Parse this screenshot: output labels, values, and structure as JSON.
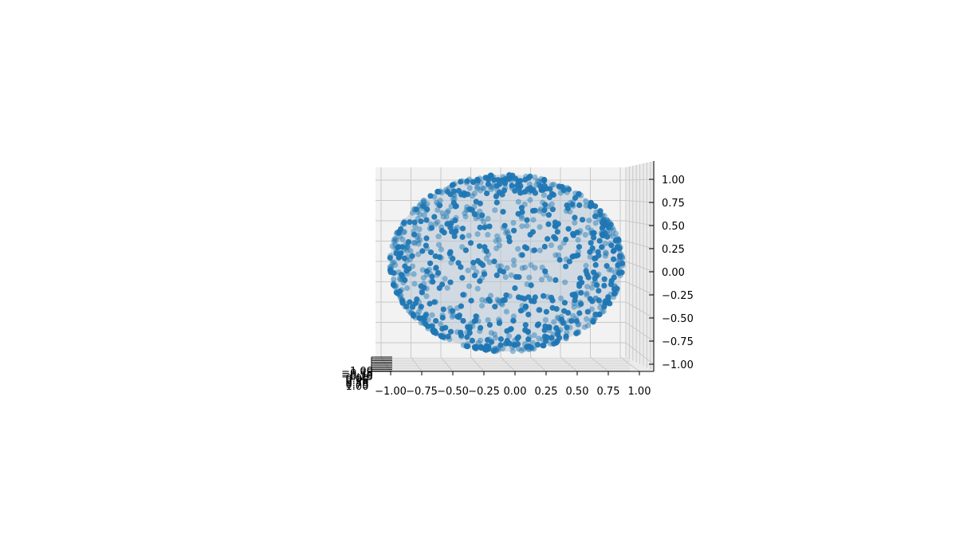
{
  "chart_data": {
    "type": "scatter",
    "projection": "3d",
    "title": "",
    "xlabel": "",
    "ylabel": "",
    "zlabel": "",
    "xlim": [
      -1.1,
      1.1
    ],
    "ylim": [
      -1.1,
      1.1
    ],
    "zlim": [
      -1.1,
      1.1
    ],
    "grid": true,
    "x_ticks": [
      "−1.00",
      "−0.75",
      "−0.50",
      "−0.25",
      "0.00",
      "0.25",
      "0.50",
      "0.75",
      "1.00"
    ],
    "z_ticks": [
      "1.00",
      "0.75",
      "0.50",
      "0.25",
      "0.00",
      "−0.25",
      "−0.50",
      "−0.75",
      "−1.00"
    ],
    "y_ticks_overlapping": [
      "−1.00",
      "−0.75",
      "−0.50",
      "−0.25",
      "0.00",
      "0.25",
      "0.50",
      "0.75",
      "1.00"
    ],
    "y_tick_visible_fragments": [
      "1.00",
      "0.25",
      "0.50",
      "0.75"
    ],
    "surface": {
      "shape": "sphere",
      "radius": 1.0,
      "color": "#b7c7d6",
      "alpha": 0.55
    },
    "series": [
      {
        "kind": "points on unit sphere",
        "count": 1000,
        "color": "#1f77b4"
      }
    ],
    "colors": {
      "points": "#1f77b4",
      "pane": "#f2f2f2",
      "grid": "#c8c8c8"
    }
  }
}
